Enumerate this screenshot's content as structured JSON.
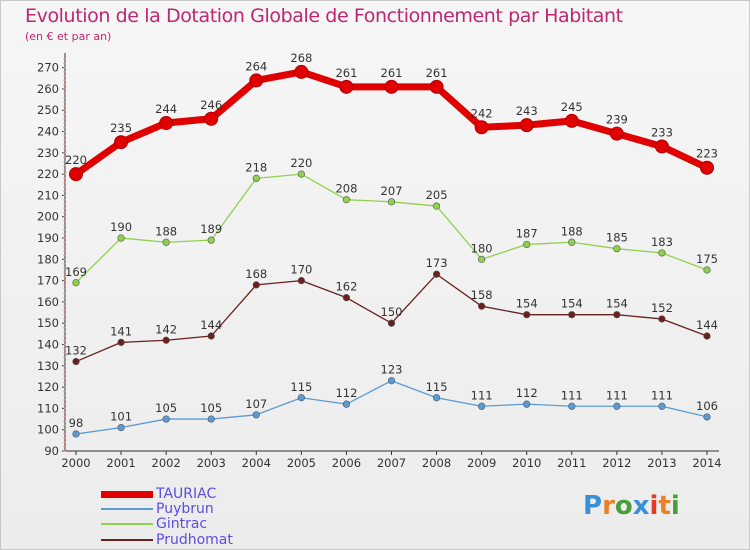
{
  "title": "Evolution de la Dotation Globale de Fonctionnement par Habitant",
  "subtitle": "(en € et par an)",
  "logo": {
    "text": "Proxiti",
    "letters": [
      "P",
      "r",
      "o",
      "x",
      "i",
      "t",
      "i"
    ],
    "colors": [
      "#3b8fd8",
      "#e8822a",
      "#4a9e3a",
      "#3b8fd8",
      "#e03a2a",
      "#e8822a",
      "#4a9e3a"
    ]
  },
  "chart_data": {
    "type": "line",
    "title": "Evolution de la Dotation Globale de Fonctionnement par Habitant",
    "subtitle": "(en € et par an)",
    "categories": [
      "2000",
      "2001",
      "2002",
      "2003",
      "2004",
      "2005",
      "2006",
      "2007",
      "2008",
      "2009",
      "2010",
      "2011",
      "2012",
      "2013",
      "2014"
    ],
    "ylim": [
      90,
      275
    ],
    "yticks": [
      90,
      100,
      110,
      120,
      130,
      140,
      150,
      160,
      170,
      180,
      190,
      200,
      210,
      220,
      230,
      240,
      250,
      260,
      270
    ],
    "grid": false,
    "legend_position": "bottom-left",
    "series": [
      {
        "name": "TAURIAC",
        "color": "#e00000",
        "values": [
          220,
          235,
          244,
          246,
          264,
          268,
          261,
          261,
          261,
          242,
          243,
          245,
          239,
          233,
          223
        ]
      },
      {
        "name": "Puybrun",
        "color": "#5b9bd5",
        "values": [
          98,
          101,
          105,
          105,
          107,
          115,
          112,
          123,
          115,
          111,
          112,
          111,
          111,
          111,
          106
        ]
      },
      {
        "name": "Gintrac",
        "color": "#8fd14f",
        "values": [
          169,
          190,
          188,
          189,
          218,
          220,
          208,
          207,
          205,
          180,
          187,
          188,
          185,
          183,
          175
        ]
      },
      {
        "name": "Prudhomat",
        "color": "#6b1f1f",
        "values": [
          132,
          141,
          142,
          144,
          168,
          170,
          162,
          150,
          173,
          158,
          154,
          154,
          154,
          152,
          144
        ]
      }
    ]
  }
}
